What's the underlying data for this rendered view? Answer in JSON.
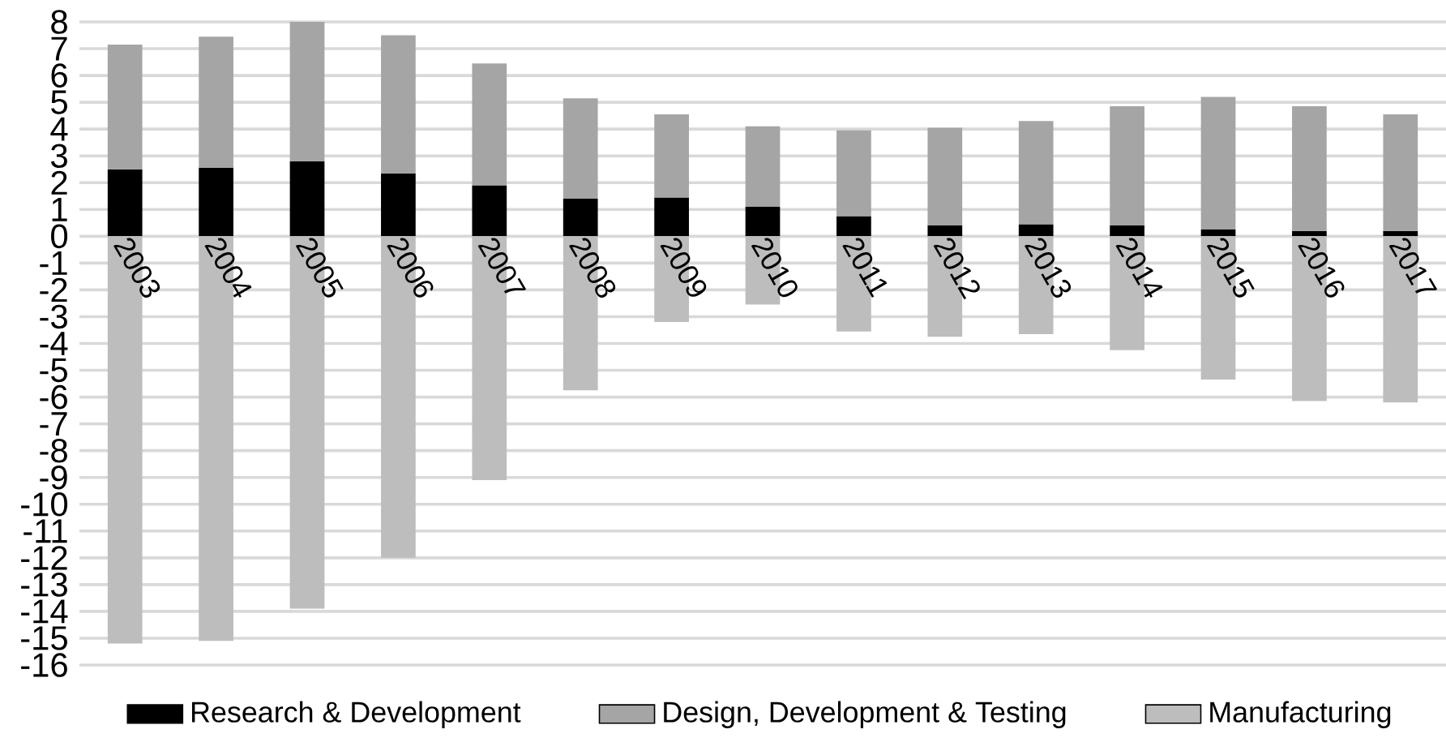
{
  "chart_data": {
    "type": "bar",
    "stacked": true,
    "categories": [
      "2003",
      "2004",
      "2005",
      "2006",
      "2007",
      "2008",
      "2009",
      "2010",
      "2011",
      "2012",
      "2013",
      "2014",
      "2015",
      "2016",
      "2017"
    ],
    "series": [
      {
        "name": "Research & Development",
        "color": "#000000",
        "values": [
          2.5,
          2.55,
          2.8,
          2.35,
          1.9,
          1.4,
          1.45,
          1.1,
          0.75,
          0.4,
          0.45,
          0.4,
          0.25,
          0.2,
          0.2
        ]
      },
      {
        "name": "Design, Development & Testing",
        "color": "#a5a5a5",
        "values": [
          4.65,
          4.9,
          5.2,
          5.15,
          4.55,
          3.75,
          3.1,
          3.0,
          3.2,
          3.65,
          3.85,
          4.45,
          4.95,
          4.65,
          4.35
        ]
      },
      {
        "name": "Manufacturing",
        "color": "#bdbdbd",
        "values": [
          -15.2,
          -15.1,
          -13.9,
          -12.0,
          -9.1,
          -5.75,
          -3.2,
          -2.55,
          -3.55,
          -3.75,
          -3.65,
          -4.25,
          -5.35,
          -6.15,
          -6.2
        ]
      }
    ],
    "ylim": [
      -16,
      8
    ],
    "yticks": [
      -16,
      -15,
      -14,
      -13,
      -12,
      -11,
      -10,
      -9,
      -8,
      -7,
      -6,
      -5,
      -4,
      -3,
      -2,
      -1,
      0,
      1,
      2,
      3,
      4,
      5,
      6,
      7,
      8
    ],
    "grid": "y",
    "legend": "bottom"
  }
}
